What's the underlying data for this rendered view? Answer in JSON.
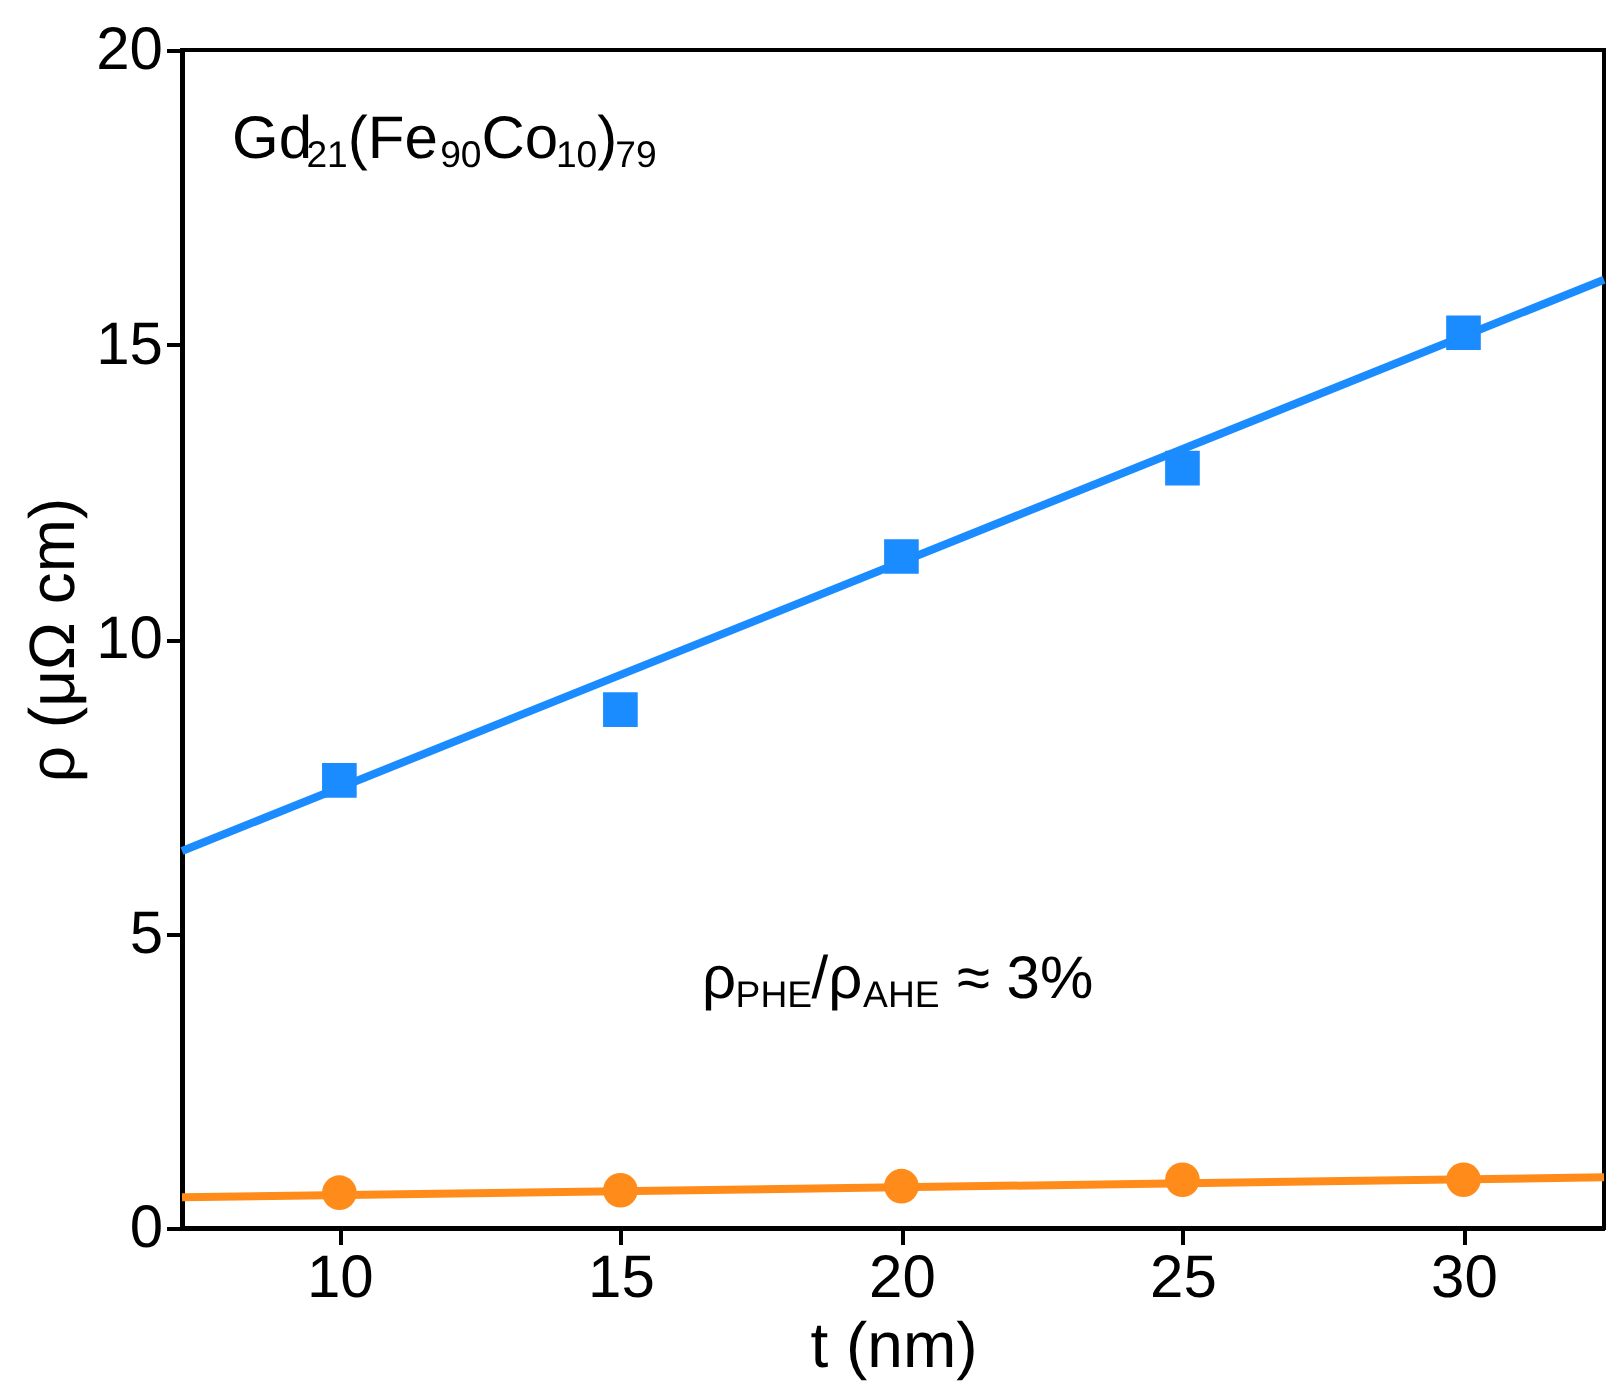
{
  "chart_data": {
    "type": "scatter",
    "xlabel": "t (nm)",
    "ylabel": "ρ (μΩ cm)",
    "xlim": [
      7.2,
      32.5
    ],
    "ylim": [
      0,
      20
    ],
    "xticks": [
      10,
      15,
      20,
      25,
      30
    ],
    "yticks": [
      0,
      5,
      10,
      15,
      20
    ],
    "grid": false,
    "annotations": [
      "Gd$_{21}$(Fe$_{90}$Co$_{10}$)$_{79}$",
      "ρ$_{PHE}$/ρ$_{AHE}$ ≈ 3%"
    ],
    "series": [
      {
        "marker": "square",
        "color": "#1a8cff",
        "x": [
          10,
          15,
          20,
          25,
          30
        ],
        "values": [
          7.6,
          8.8,
          11.4,
          12.9,
          15.2
        ]
      },
      {
        "type": "line",
        "marker": "none",
        "color": "#1a8cff",
        "x": [
          7.2,
          32.5
        ],
        "values": [
          6.4,
          16.1
        ]
      },
      {
        "marker": "circle",
        "color": "#ff8c1a",
        "x": [
          10,
          15,
          20,
          25,
          30
        ],
        "values": [
          0.6,
          0.64,
          0.71,
          0.82,
          0.82
        ]
      },
      {
        "type": "line",
        "marker": "none",
        "color": "#ff8c1a",
        "x": [
          7.2,
          32.5
        ],
        "values": [
          0.52,
          0.86
        ]
      }
    ]
  }
}
